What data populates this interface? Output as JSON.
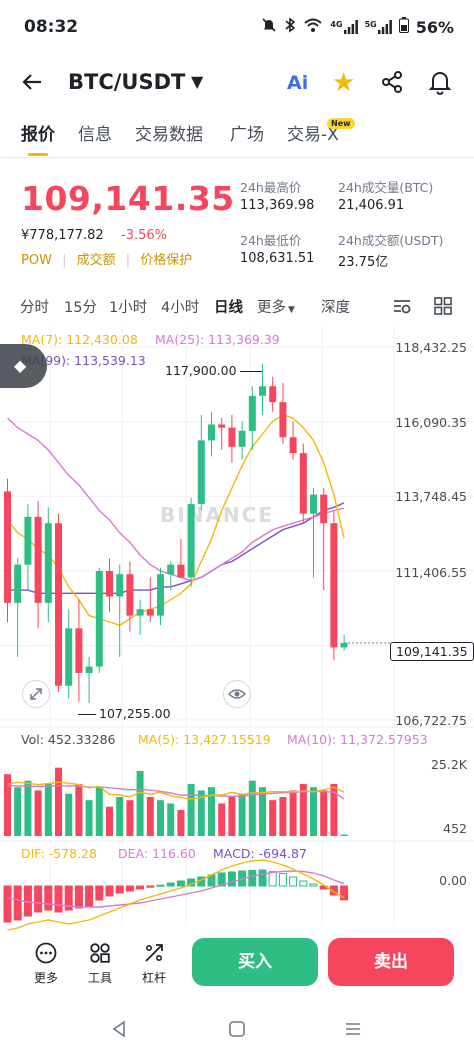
{
  "status": {
    "time": "08:32",
    "net1": "4G",
    "net2": "5G",
    "battery": "56%"
  },
  "header": {
    "title": "BTC/USDT",
    "ai_label": "Ai"
  },
  "tabs": [
    "报价",
    "信息",
    "交易数据",
    "广场",
    "交易-X"
  ],
  "new_badge": "New",
  "price": {
    "last": "109,141.35",
    "cny": "¥778,177.82",
    "change": "-3.56%",
    "flags": [
      "POW",
      "成交额",
      "价格保护"
    ]
  },
  "stats": {
    "high_label": "24h最高价",
    "high": "113,369.98",
    "vol_btc_label": "24h成交量(BTC)",
    "vol_btc": "21,406.91",
    "low_label": "24h最低价",
    "low": "108,631.51",
    "vol_usdt_label": "24h成交额(USDT)",
    "vol_usdt": "23.75亿"
  },
  "intervals": [
    "分时",
    "15分",
    "1小时",
    "4小时",
    "日线",
    "更多",
    "深度"
  ],
  "intervals_active": "日线",
  "ma_labels": {
    "ma7": "MA(7): 112,430.08",
    "ma25": "MA(25): 113,369.39",
    "ma99": "MA(99): 113,539.13"
  },
  "watermark": "BINANCE",
  "annotations": {
    "high": "117,900.00",
    "low": "107,255.00"
  },
  "current_price_label": "109,141.35",
  "vol_labels": {
    "vol": "Vol: 452.33286",
    "ma5": "MA(5): 13,427.15519",
    "ma10": "MA(10): 11,372.57953"
  },
  "macd_labels": {
    "dif": "DIF: -578.28",
    "dea": "DEA: 116.60",
    "macd": "MACD: -694.87"
  },
  "colors": {
    "up": "#2ebd85",
    "down": "#f6465d",
    "ma7": "#f0b90b",
    "ma25": "#d67ad1",
    "ma99": "#7b4fc9"
  },
  "chart_data": {
    "type": "candlestick",
    "price_axis": [
      "118,432.25",
      "116,090.35",
      "113,748.45",
      "111,406.55",
      "106,722.75"
    ],
    "volume_axis": [
      "25.2K",
      "452"
    ],
    "macd_axis": [
      "0.00"
    ],
    "ylim": [
      106722.75,
      118432.25
    ],
    "candles": [
      {
        "o": 113900,
        "h": 114300,
        "l": 109800,
        "c": 110400
      },
      {
        "o": 110400,
        "h": 111800,
        "l": 108700,
        "c": 111600
      },
      {
        "o": 111600,
        "h": 113500,
        "l": 110800,
        "c": 113100
      },
      {
        "o": 113100,
        "h": 113600,
        "l": 109600,
        "c": 110400
      },
      {
        "o": 110400,
        "h": 113400,
        "l": 109800,
        "c": 112900
      },
      {
        "o": 112900,
        "h": 113200,
        "l": 107600,
        "c": 107800
      },
      {
        "o": 107800,
        "h": 110200,
        "l": 107400,
        "c": 109600
      },
      {
        "o": 109600,
        "h": 110500,
        "l": 107300,
        "c": 108200
      },
      {
        "o": 108200,
        "h": 108700,
        "l": 107255,
        "c": 108400
      },
      {
        "o": 108400,
        "h": 111500,
        "l": 108200,
        "c": 111400
      },
      {
        "o": 111400,
        "h": 111800,
        "l": 110100,
        "c": 110600
      },
      {
        "o": 110600,
        "h": 111600,
        "l": 108700,
        "c": 111300
      },
      {
        "o": 111300,
        "h": 111700,
        "l": 109500,
        "c": 110000
      },
      {
        "o": 110000,
        "h": 110500,
        "l": 109400,
        "c": 110200
      },
      {
        "o": 110200,
        "h": 111200,
        "l": 109800,
        "c": 110000
      },
      {
        "o": 110000,
        "h": 111500,
        "l": 109700,
        "c": 111300
      },
      {
        "o": 111300,
        "h": 111700,
        "l": 110800,
        "c": 111600
      },
      {
        "o": 111600,
        "h": 112400,
        "l": 111300,
        "c": 111200
      },
      {
        "o": 111200,
        "h": 113700,
        "l": 110900,
        "c": 113500
      },
      {
        "o": 113500,
        "h": 116300,
        "l": 113300,
        "c": 115500
      },
      {
        "o": 115500,
        "h": 116400,
        "l": 115000,
        "c": 116000
      },
      {
        "o": 116000,
        "h": 116200,
        "l": 115200,
        "c": 115900
      },
      {
        "o": 115900,
        "h": 116300,
        "l": 114800,
        "c": 115300
      },
      {
        "o": 115300,
        "h": 116100,
        "l": 114900,
        "c": 115800
      },
      {
        "o": 115800,
        "h": 117200,
        "l": 115200,
        "c": 116900
      },
      {
        "o": 116900,
        "h": 117900,
        "l": 116300,
        "c": 117200
      },
      {
        "o": 117200,
        "h": 117500,
        "l": 116400,
        "c": 116700
      },
      {
        "o": 116700,
        "h": 117300,
        "l": 115400,
        "c": 115600
      },
      {
        "o": 115600,
        "h": 116100,
        "l": 114900,
        "c": 115100
      },
      {
        "o": 115100,
        "h": 115400,
        "l": 112900,
        "c": 113200
      },
      {
        "o": 113200,
        "h": 114000,
        "l": 111200,
        "c": 113800
      },
      {
        "o": 113800,
        "h": 114000,
        "l": 110800,
        "c": 112900
      },
      {
        "o": 112900,
        "h": 113300,
        "l": 108600,
        "c": 109000
      },
      {
        "o": 109000,
        "h": 109400,
        "l": 108900,
        "c": 109141.35
      }
    ],
    "ma7": [
      113000,
      112600,
      112400,
      112100,
      111900,
      111500,
      110900,
      110500,
      110000,
      109900,
      109800,
      109700,
      109900,
      110100,
      110200,
      110300,
      110500,
      110700,
      111000,
      111700,
      112400,
      113300,
      114000,
      114700,
      115300,
      115700,
      116100,
      116300,
      116200,
      115900,
      115500,
      114800,
      113800,
      112430
    ],
    "ma25": [
      116200,
      115900,
      115700,
      115500,
      115200,
      114800,
      114400,
      114100,
      113700,
      113300,
      113000,
      112600,
      112300,
      111900,
      111600,
      111400,
      111300,
      111200,
      111100,
      111200,
      111400,
      111600,
      111800,
      112000,
      112300,
      112500,
      112700,
      112800,
      112900,
      113000,
      113100,
      113200,
      113300,
      113369
    ],
    "ma99": [
      110800,
      110800,
      110800,
      110700,
      110700,
      110700,
      110700,
      110700,
      110700,
      110700,
      110700,
      110700,
      110800,
      110800,
      110800,
      110900,
      110900,
      111000,
      111100,
      111200,
      111400,
      111600,
      111700,
      111900,
      112100,
      112300,
      112500,
      112700,
      112800,
      112900,
      113100,
      113300,
      113400,
      113539
    ],
    "volume": [
      19000,
      15000,
      17000,
      14000,
      16000,
      21000,
      13000,
      16000,
      11000,
      15000,
      9000,
      12000,
      11000,
      20000,
      12000,
      11000,
      10000,
      8000,
      16000,
      14000,
      15000,
      10000,
      12000,
      13000,
      17000,
      15000,
      11000,
      12000,
      14000,
      16000,
      15000,
      14000,
      16000,
      452
    ],
    "vol_ma5": [
      16000,
      16500,
      16200,
      15800,
      16100,
      16600,
      16200,
      15800,
      14800,
      15200,
      12800,
      12600,
      12000,
      13400,
      12800,
      13400,
      12400,
      11800,
      11400,
      11800,
      12600,
      12600,
      13400,
      12800,
      13200,
      13400,
      13600,
      13600,
      13600,
      13800,
      13600,
      14200,
      15000,
      13427
    ],
    "vol_ma10": [
      15500,
      15400,
      15300,
      15200,
      15300,
      15500,
      15400,
      15300,
      15000,
      15100,
      14800,
      14500,
      14200,
      14300,
      14100,
      13700,
      13200,
      12500,
      12600,
      12400,
      12500,
      12300,
      12200,
      12300,
      12600,
      12900,
      13100,
      13300,
      13400,
      13600,
      13700,
      13600,
      13500,
      11372
    ],
    "macd_hist": [
      -1800,
      -1700,
      -1500,
      -1300,
      -1200,
      -1300,
      -1200,
      -1100,
      -1000,
      -700,
      -500,
      -350,
      -250,
      -150,
      -60,
      40,
      150,
      250,
      350,
      450,
      550,
      650,
      700,
      750,
      780,
      800,
      720,
      620,
      450,
      250,
      100,
      -150,
      -450,
      -695
    ],
    "dif": [
      -2200,
      -2100,
      -1900,
      -1800,
      -1700,
      -1800,
      -1900,
      -1800,
      -1700,
      -1500,
      -1300,
      -1100,
      -900,
      -700,
      -550,
      -400,
      -250,
      -100,
      80,
      300,
      550,
      800,
      1000,
      1150,
      1250,
      1300,
      1200,
      1050,
      850,
      600,
      350,
      50,
      -300,
      -578
    ],
    "dea": [
      -600,
      -700,
      -800,
      -850,
      -900,
      -950,
      -1000,
      -1050,
      -1050,
      -1050,
      -1000,
      -950,
      -900,
      -850,
      -750,
      -650,
      -550,
      -450,
      -350,
      -250,
      -100,
      50,
      200,
      350,
      500,
      600,
      680,
      730,
      750,
      730,
      650,
      500,
      300,
      117
    ]
  }
}
